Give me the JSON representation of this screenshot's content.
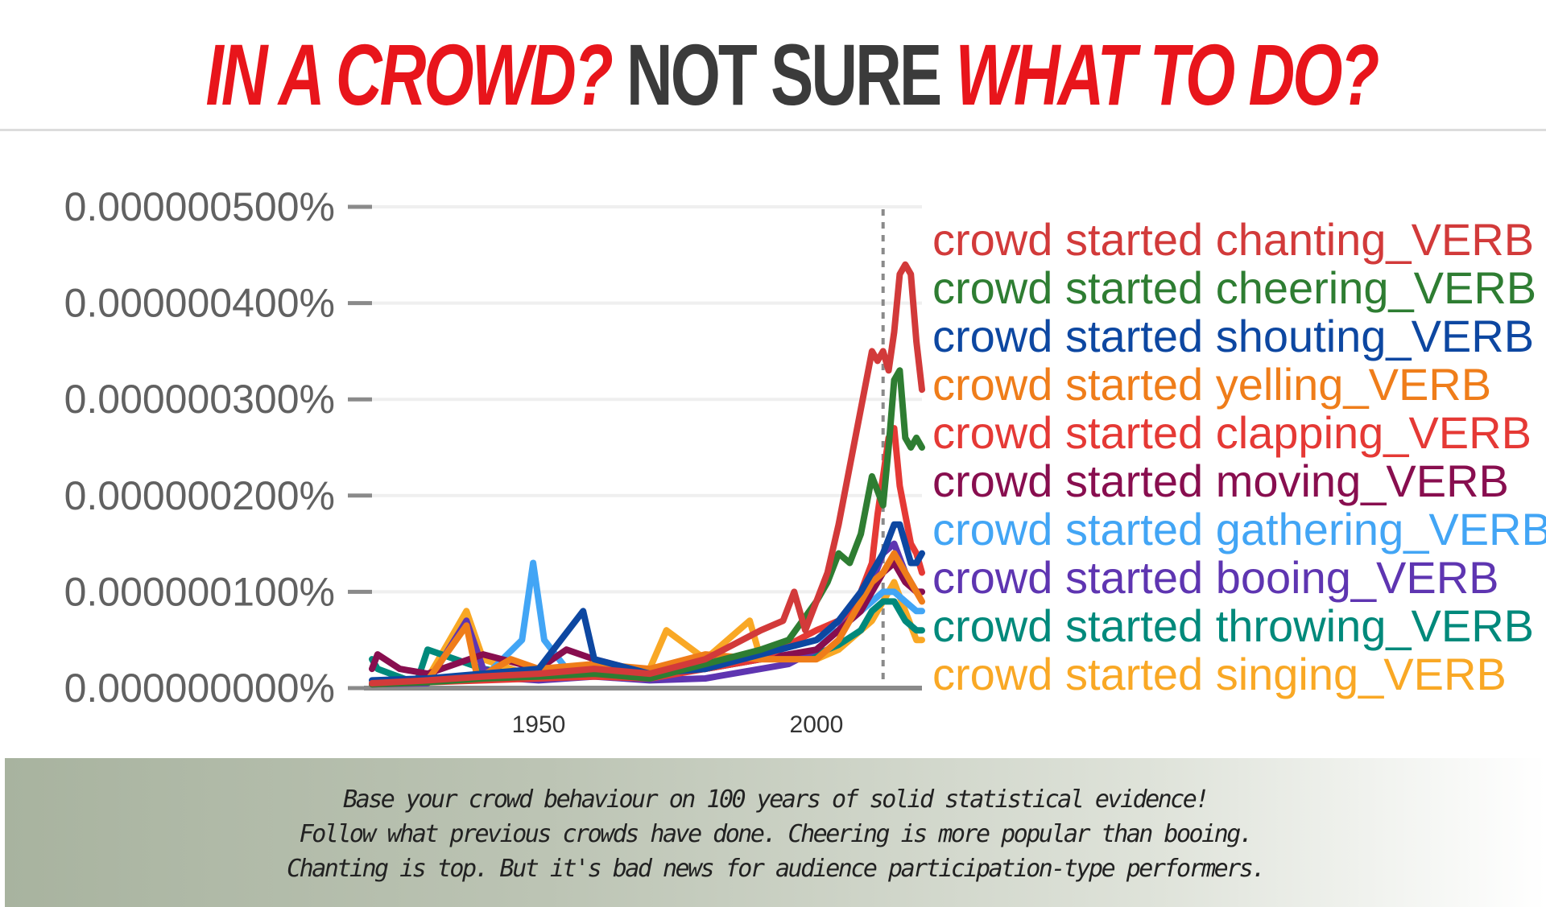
{
  "title": {
    "part1": "IN A CROWD?",
    "part2": "NOT SURE",
    "part3": "WHAT TO DO?"
  },
  "caption": {
    "line1": "Base your crowd behaviour on 100 years of solid statistical evidence!",
    "line2": "Follow what previous crowds have done. Cheering is more popular than booing.",
    "line3": "Chanting is top. But it's bad news for audience participation-type performers."
  },
  "chart_data": {
    "type": "line",
    "xlim": [
      1920,
      2019
    ],
    "ylim": [
      0,
      5e-07
    ],
    "y_ticks": [
      0,
      1e-07,
      2e-07,
      3e-07,
      4e-07,
      5e-07
    ],
    "y_tick_labels": [
      "0.000000000%",
      "0.000000100%",
      "0.000000200%",
      "0.000000300%",
      "0.000000400%",
      "0.000000500%"
    ],
    "x_ticks": [
      1950,
      2000
    ],
    "x_tick_labels": [
      "1950",
      "2000"
    ],
    "marker_year": 2012,
    "grid": true,
    "legend_position": "right",
    "series": [
      {
        "name": "crowd started chanting_VERB",
        "color": "#d23a3a",
        "x": [
          1920,
          1930,
          1940,
          1950,
          1960,
          1970,
          1980,
          1985,
          1990,
          1994,
          1996,
          1998,
          2000,
          2002,
          2004,
          2006,
          2008,
          2010,
          2011,
          2012,
          2013,
          2014,
          2015,
          2016,
          2017,
          2018,
          2019
        ],
        "y": [
          5e-09,
          8e-09,
          1.2e-08,
          1.5e-08,
          2e-08,
          1.5e-08,
          3e-08,
          4.5e-08,
          6e-08,
          7e-08,
          1e-07,
          6e-08,
          9e-08,
          1.2e-07,
          1.7e-07,
          2.3e-07,
          2.9e-07,
          3.5e-07,
          3.4e-07,
          3.5e-07,
          3.3e-07,
          3.7e-07,
          4.3e-07,
          4.4e-07,
          4.3e-07,
          3.6e-07,
          3.1e-07
        ]
      },
      {
        "name": "crowd started cheering_VERB",
        "color": "#2e7d32",
        "x": [
          1920,
          1930,
          1940,
          1950,
          1960,
          1970,
          1980,
          1990,
          1995,
          2000,
          2002,
          2004,
          2006,
          2008,
          2010,
          2012,
          2013,
          2014,
          2015,
          2016,
          2017,
          2018,
          2019
        ],
        "y": [
          4e-09,
          6e-09,
          1e-08,
          1.2e-08,
          1.5e-08,
          1e-08,
          2.5e-08,
          4e-08,
          5e-08,
          9e-08,
          1.1e-07,
          1.4e-07,
          1.3e-07,
          1.6e-07,
          2.2e-07,
          1.9e-07,
          2.5e-07,
          3.2e-07,
          3.3e-07,
          2.6e-07,
          2.5e-07,
          2.6e-07,
          2.5e-07
        ]
      },
      {
        "name": "crowd started shouting_VERB",
        "color": "#0d47a1",
        "x": [
          1920,
          1930,
          1940,
          1950,
          1958,
          1960,
          1970,
          1980,
          1990,
          2000,
          2004,
          2008,
          2010,
          2012,
          2014,
          2015,
          2016,
          2017,
          2018,
          2019
        ],
        "y": [
          8e-09,
          1e-08,
          1.5e-08,
          2e-08,
          8e-08,
          3e-08,
          1.5e-08,
          2e-08,
          3.5e-08,
          5e-08,
          7e-08,
          1e-07,
          1.2e-07,
          1.4e-07,
          1.7e-07,
          1.7e-07,
          1.5e-07,
          1.3e-07,
          1.3e-07,
          1.4e-07
        ]
      },
      {
        "name": "crowd started yelling_VERB",
        "color": "#ef7d1a",
        "x": [
          1920,
          1930,
          1937,
          1939,
          1945,
          1950,
          1960,
          1970,
          1980,
          1990,
          2000,
          2004,
          2008,
          2010,
          2012,
          2014,
          2016,
          2018,
          2019
        ],
        "y": [
          5e-09,
          8e-09,
          6.5e-08,
          1e-08,
          3e-08,
          2e-08,
          2.5e-08,
          2e-08,
          3.5e-08,
          3e-08,
          3e-08,
          5e-08,
          9e-08,
          1.1e-07,
          1.2e-07,
          1.4e-07,
          1.2e-07,
          1e-07,
          9e-08
        ]
      },
      {
        "name": "crowd started clapping_VERB",
        "color": "#e53935",
        "x": [
          1920,
          1930,
          1940,
          1950,
          1960,
          1970,
          1980,
          1990,
          2000,
          2004,
          2006,
          2008,
          2010,
          2011,
          2012,
          2013,
          2014,
          2015,
          2016,
          2017,
          2018,
          2019
        ],
        "y": [
          4e-09,
          6e-09,
          8e-09,
          1e-08,
          1.2e-08,
          1e-08,
          2e-08,
          3e-08,
          6e-08,
          7e-08,
          8e-08,
          1e-07,
          1.3e-07,
          1.8e-07,
          2.2e-07,
          2.6e-07,
          2.7e-07,
          2.1e-07,
          1.8e-07,
          1.5e-07,
          1.4e-07,
          1.2e-07
        ]
      },
      {
        "name": "crowd started moving_VERB",
        "color": "#880e4f",
        "x": [
          1920,
          1921,
          1925,
          1930,
          1940,
          1950,
          1955,
          1960,
          1970,
          1980,
          1990,
          2000,
          2004,
          2008,
          2010,
          2012,
          2014,
          2016,
          2018,
          2019
        ],
        "y": [
          2e-08,
          3.5e-08,
          2e-08,
          1.5e-08,
          3.5e-08,
          2e-08,
          4e-08,
          3e-08,
          1.5e-08,
          2e-08,
          3e-08,
          4e-08,
          6e-08,
          8e-08,
          1e-07,
          1.2e-07,
          1.3e-07,
          1.1e-07,
          1e-07,
          1e-07
        ]
      },
      {
        "name": "crowd started gathering_VERB",
        "color": "#42a5f5",
        "x": [
          1920,
          1930,
          1940,
          1947,
          1949,
          1951,
          1955,
          1960,
          1970,
          1980,
          1990,
          2000,
          2004,
          2008,
          2010,
          2012,
          2014,
          2016,
          2018,
          2019
        ],
        "y": [
          5e-09,
          8e-09,
          1e-08,
          5e-08,
          1.3e-07,
          5e-08,
          2e-08,
          2e-08,
          1.5e-08,
          2e-08,
          3.5e-08,
          5e-08,
          6e-08,
          8e-08,
          9e-08,
          1e-07,
          1e-07,
          9e-08,
          8e-08,
          8e-08
        ]
      },
      {
        "name": "crowd started booing_VERB",
        "color": "#5e35b1",
        "x": [
          1920,
          1930,
          1937,
          1940,
          1945,
          1950,
          1960,
          1970,
          1980,
          1990,
          1995,
          2000,
          2004,
          2008,
          2010,
          2012,
          2014,
          2016,
          2018,
          2019
        ],
        "y": [
          4e-09,
          5e-09,
          7e-08,
          2e-08,
          1e-08,
          8e-09,
          1.2e-08,
          8e-09,
          1e-08,
          2e-08,
          2.5e-08,
          4e-08,
          6e-08,
          9e-08,
          1.1e-07,
          1.4e-07,
          1.5e-07,
          1.2e-07,
          1e-07,
          1e-07
        ]
      },
      {
        "name": "crowd started throwing_VERB",
        "color": "#00897b",
        "x": [
          1920,
          1921,
          1928,
          1930,
          1940,
          1950,
          1960,
          1970,
          1980,
          1990,
          2000,
          2004,
          2008,
          2010,
          2012,
          2014,
          2016,
          2018,
          2019
        ],
        "y": [
          3e-08,
          2e-08,
          5e-09,
          4e-08,
          2e-08,
          1e-08,
          2e-08,
          1.5e-08,
          2e-08,
          3e-08,
          3.5e-08,
          4.5e-08,
          6e-08,
          8e-08,
          9e-08,
          9e-08,
          7e-08,
          6e-08,
          6e-08
        ]
      },
      {
        "name": "crowd started singing_VERB",
        "color": "#f9a825",
        "x": [
          1920,
          1930,
          1937,
          1940,
          1950,
          1960,
          1970,
          1973,
          1980,
          1988,
          1990,
          2000,
          2004,
          2008,
          2010,
          2012,
          2014,
          2016,
          2018,
          2019
        ],
        "y": [
          5e-09,
          1e-08,
          8e-08,
          3e-08,
          1e-08,
          2e-08,
          2e-08,
          6e-08,
          3e-08,
          7e-08,
          3e-08,
          3e-08,
          4e-08,
          6e-08,
          7e-08,
          9e-08,
          1.1e-07,
          8e-08,
          5e-08,
          5e-08
        ]
      }
    ]
  }
}
